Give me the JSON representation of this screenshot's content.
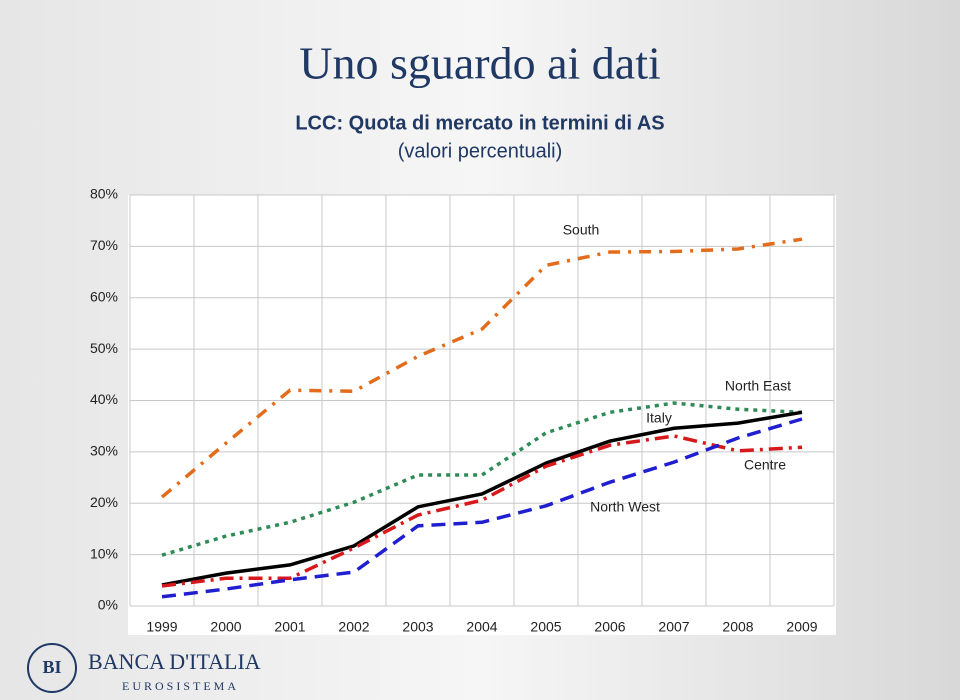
{
  "chart_data": {
    "type": "line",
    "title": "Uno sguardo ai dati",
    "subtitle": "LCC: Quota di mercato in termini di AS",
    "subtitle2": "(valori percentuali)",
    "categories": [
      "1999",
      "2000",
      "2001",
      "2002",
      "2003",
      "2004",
      "2005",
      "2006",
      "2007",
      "2008",
      "2009"
    ],
    "series": [
      {
        "name": "South",
        "color": "#e36c1c",
        "values": [
          21.2,
          31.7,
          42,
          41.8,
          48.6,
          53.9,
          66.3,
          68.9,
          69,
          69.5,
          71.4
        ]
      },
      {
        "name": "North East",
        "color": "#2e8b57",
        "values": [
          9.9,
          13.6,
          16.3,
          20.2,
          25.5,
          25.5,
          33.7,
          37.7,
          39.5,
          38.3,
          37.7
        ]
      },
      {
        "name": "Italy",
        "color": "#000000",
        "values": [
          4.1,
          6.4,
          8.0,
          11.7,
          19.3,
          21.8,
          27.8,
          32.1,
          34.6,
          35.6,
          37.7
        ]
      },
      {
        "name": "Centre",
        "color": "#d7191c",
        "values": [
          3.9,
          5.4,
          5.4,
          11.3,
          17.7,
          20.6,
          27.2,
          31.3,
          33.1,
          30.2,
          30.9
        ]
      },
      {
        "name": "North West",
        "color": "#1f1fd0",
        "values": [
          1.8,
          3.3,
          5.1,
          6.6,
          15.6,
          16.3,
          19.5,
          24.1,
          28,
          32.7,
          36.4
        ]
      }
    ],
    "ylim": [
      0,
      80
    ],
    "yticks": [
      {
        "value": 0,
        "label": "0%"
      },
      {
        "value": 10,
        "label": "10%"
      },
      {
        "value": 20,
        "label": "20%"
      },
      {
        "value": 30,
        "label": "30%"
      },
      {
        "value": 40,
        "label": "40%"
      },
      {
        "value": 50,
        "label": "50%"
      },
      {
        "value": 60,
        "label": "60%"
      },
      {
        "value": 70,
        "label": "70%"
      },
      {
        "value": 80,
        "label": "80%"
      }
    ],
    "grid": true
  },
  "footer": {
    "bank": "BANCA D'ITALIA",
    "system": "EUROSISTEMA",
    "logo": "BI"
  }
}
